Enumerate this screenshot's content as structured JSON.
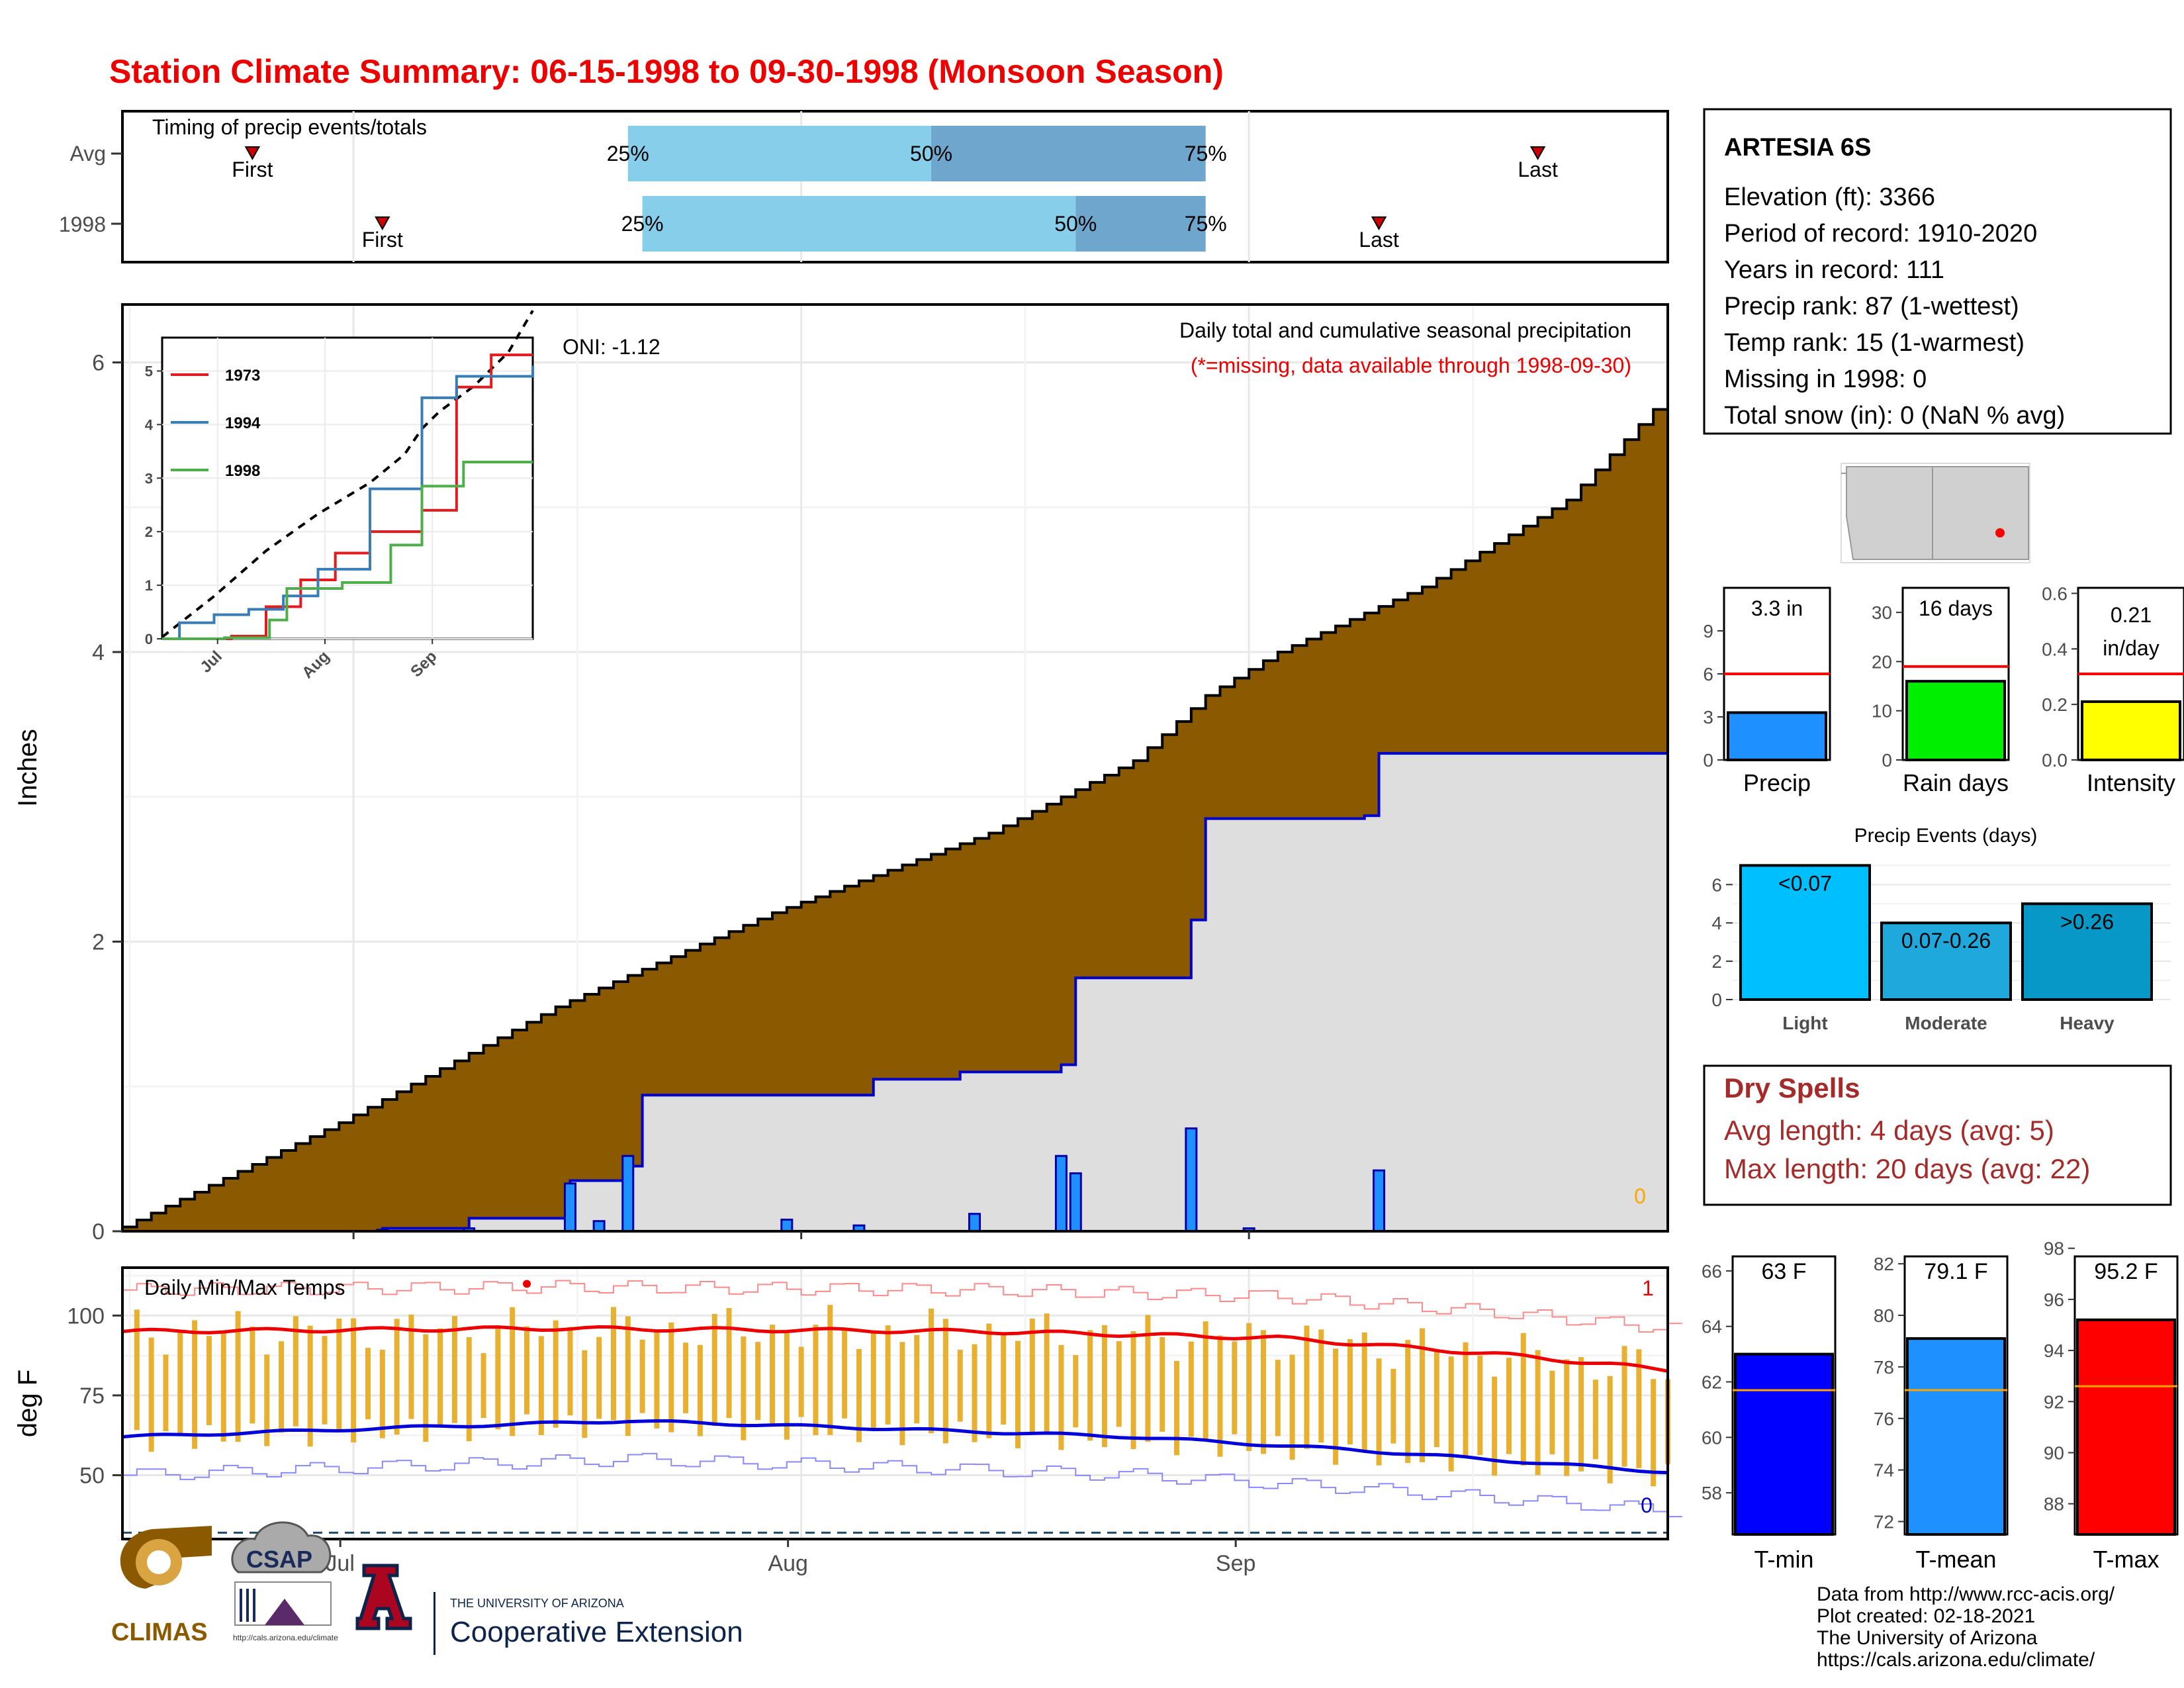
{
  "title": "Station Climate Summary: 06-15-1998 to 09-30-1998 (Monsoon Season)",
  "colors": {
    "title": "#ee0000",
    "cumulative_fill": "#8b5a00",
    "current_fill": "#dedede",
    "daily_bar": "#1e90ff",
    "timing_light": "#87ceeb",
    "timing_dark": "#6fa6cd",
    "record_line": "#ff0000",
    "dry_spells": "#a52a2a",
    "temp_bar": "#e8b030",
    "tmax_line": "#ee0000",
    "tmin_line": "#0000dd"
  },
  "station": {
    "name": "ARTESIA 6S",
    "lines": [
      "Elevation (ft): 3366",
      "Period of record: 1910-2020",
      "Years in record: 111",
      "Precip rank: 87 (1-wettest)",
      "Temp rank: 15 (1-warmest)",
      "Missing in 1998: 0",
      "Total snow (in): 0 (NaN % avg)"
    ]
  },
  "map": {
    "icon": "nm-state-map-icon"
  },
  "timing": {
    "title": "Timing of precip events/totals",
    "x_range_days": [
      0,
      107
    ],
    "rows": [
      {
        "label": "Avg",
        "first": 9,
        "p25": 35,
        "p50": 56,
        "p75": 75,
        "last": 98,
        "first_label": "First",
        "last_label": "Last",
        "p25_label": "25%",
        "p50_label": "50%",
        "p75_label": "75%"
      },
      {
        "label": "1998",
        "first": 18,
        "p25": 36,
        "p50": 66,
        "p75": 75,
        "last": 87,
        "first_label": "First",
        "last_label": "Last",
        "p25_label": "25%",
        "p50_label": "50%",
        "p75_label": "75%"
      }
    ]
  },
  "precip_panel": {
    "ylabel": "Inches",
    "y_ticks": [
      "0",
      "2",
      "4",
      "6"
    ],
    "ylim": [
      0,
      6.4
    ],
    "oni": "ONI: -1.12",
    "title": "Daily total and cumulative seasonal precipitation",
    "missing_note": "(*=missing, data available through 1998-09-30)",
    "missing_count": "0",
    "x_tick_labels": [
      "Jul",
      "Aug",
      "Sep"
    ]
  },
  "inset": {
    "y_ticks": [
      "0",
      "1",
      "2",
      "3",
      "4",
      "5"
    ],
    "x_tick_labels": [
      "Jul",
      "Aug",
      "Sep"
    ],
    "legend": [
      {
        "name": "1973",
        "color": "#e41a1c"
      },
      {
        "name": "1994",
        "color": "#377eb8"
      },
      {
        "name": "1998",
        "color": "#4daf4a"
      }
    ]
  },
  "temp_panel": {
    "title": "Daily Min/Max Temps",
    "ylabel": "deg F",
    "y_ticks": [
      "50",
      "75",
      "100"
    ],
    "max_records_count": "1",
    "min_records_count": "0",
    "x_tick_labels": [
      "Jul",
      "Aug",
      "Sep"
    ]
  },
  "summary_bars": [
    {
      "name": "Precip",
      "value_label": "3.3 in",
      "ticks": [
        "0",
        "3",
        "6",
        "9"
      ],
      "color": "#1e90ff"
    },
    {
      "name": "Rain days",
      "value_label": "16 days",
      "ticks": [
        "0",
        "10",
        "20",
        "30"
      ],
      "color": "#00ee00"
    },
    {
      "name": "Intensity",
      "value_label_1": "0.21",
      "value_label_2": "in/day",
      "ticks": [
        "0.0",
        "0.2",
        "0.4",
        "0.6"
      ],
      "color": "#ffff00"
    }
  ],
  "events": {
    "title": "Precip Events (days)",
    "ticks": [
      "0",
      "2",
      "4",
      "6"
    ],
    "bars": [
      {
        "name": "Light",
        "label": "<0.07",
        "color": "#00bfff"
      },
      {
        "name": "Moderate",
        "label": "0.07-0.26",
        "color": "#1ea8dc"
      },
      {
        "name": "Heavy",
        "label": ">0.26",
        "color": "#0898c8"
      }
    ]
  },
  "dry_spells": {
    "title": "Dry Spells",
    "avg_line": "Avg length: 4 days (avg: 5)",
    "max_line": "Max length: 20 days (avg: 22)"
  },
  "temp_bars": [
    {
      "name": "T-min",
      "value_label": "63 F",
      "ticks": [
        "58",
        "60",
        "62",
        "64",
        "66"
      ],
      "color": "#0000ff"
    },
    {
      "name": "T-mean",
      "value_label": "79.1 F",
      "ticks": [
        "72",
        "74",
        "76",
        "78",
        "80",
        "82"
      ],
      "color": "#1e90ff"
    },
    {
      "name": "T-max",
      "value_label": "95.2 F",
      "ticks": [
        "88",
        "90",
        "92",
        "94",
        "96",
        "98"
      ],
      "color": "#ff0000"
    }
  ],
  "footer": {
    "lines": [
      "Data from http://www.rcc-acis.org/",
      "Plot created: 02-18-2021",
      "The University of Arizona",
      "https://cals.arizona.edu/climate/"
    ]
  },
  "logos": {
    "climas": "CLIMAS",
    "csap": "CSAP",
    "csap_url": "http://cals.arizona.edu/climate",
    "ua_small": "THE UNIVERSITY OF ARIZONA",
    "ua_big": "Cooperative Extension"
  },
  "chart_data": [
    {
      "type": "area",
      "title": "Daily total and cumulative seasonal precipitation",
      "ylabel": "Inches",
      "ylim": [
        0,
        6.4
      ],
      "x_unit": "days since 06-15-1998",
      "average_cumulative": {
        "x": [
          0,
          15,
          30,
          45,
          60,
          70,
          75,
          80,
          90,
          100,
          107
        ],
        "y": [
          0.03,
          0.75,
          1.55,
          2.2,
          2.75,
          3.25,
          3.7,
          4.0,
          4.45,
          5.05,
          5.78
        ]
      },
      "observed_cumulative_1998": {
        "x": [
          0,
          18,
          24,
          31,
          35,
          36,
          52,
          58,
          59,
          65,
          66,
          74,
          75,
          86,
          87,
          107
        ],
        "y": [
          0,
          0.02,
          0.09,
          0.35,
          0.45,
          0.94,
          1.05,
          1.1,
          1.1,
          1.15,
          1.75,
          2.15,
          2.85,
          2.87,
          3.3,
          3.3
        ]
      },
      "daily_precip_1998": {
        "x": [
          18,
          24,
          31,
          33,
          35,
          46,
          51,
          59,
          65,
          66,
          74,
          78,
          87
        ],
        "y": [
          0.01,
          0.02,
          0.33,
          0.07,
          0.52,
          0.08,
          0.04,
          0.12,
          0.52,
          0.4,
          0.71,
          0.02,
          0.42
        ]
      }
    },
    {
      "type": "line",
      "title": "Daily Min/Max Temps",
      "ylabel": "deg F",
      "ylim": [
        30,
        115
      ],
      "avg_tmax": {
        "x": [
          0,
          30,
          60,
          80,
          95,
          107
        ],
        "y": [
          95,
          96,
          95,
          93,
          88,
          83
        ]
      },
      "avg_tmin": {
        "x": [
          0,
          20,
          35,
          50,
          70,
          85,
          107
        ],
        "y": [
          62,
          65,
          67,
          65,
          62,
          58,
          51
        ]
      }
    },
    {
      "type": "line",
      "series": [
        {
          "name": "1973",
          "x": [
            0,
            20,
            30,
            40,
            50,
            60,
            75,
            85,
            95,
            107
          ],
          "y": [
            0,
            0.05,
            0.6,
            1.1,
            1.6,
            2.0,
            2.4,
            4.7,
            5.3,
            5.3
          ]
        },
        {
          "name": "1994",
          "x": [
            0,
            5,
            15,
            25,
            35,
            45,
            60,
            75,
            85,
            107
          ],
          "y": [
            0,
            0.3,
            0.45,
            0.55,
            0.8,
            1.3,
            2.8,
            4.5,
            4.9,
            5.1
          ]
        },
        {
          "name": "1998",
          "x": [
            0,
            18,
            31,
            36,
            52,
            66,
            75,
            87,
            107
          ],
          "y": [
            0,
            0.02,
            0.35,
            0.94,
            1.05,
            1.75,
            2.85,
            3.3,
            3.3
          ]
        }
      ]
    },
    {
      "type": "bar",
      "categories": [
        "Precip",
        "Rain days",
        "Intensity"
      ],
      "values": [
        3.3,
        16,
        0.21
      ],
      "averages": [
        6,
        19,
        0.31
      ]
    },
    {
      "type": "bar",
      "title": "Precip Events (days)",
      "categories": [
        "Light",
        "Moderate",
        "Heavy"
      ],
      "values": [
        7,
        4,
        5
      ]
    },
    {
      "type": "bar",
      "categories": [
        "T-min",
        "T-mean",
        "T-max"
      ],
      "values": [
        63,
        79.1,
        95.2
      ],
      "averages": [
        61.7,
        77.1,
        92.6
      ]
    }
  ]
}
